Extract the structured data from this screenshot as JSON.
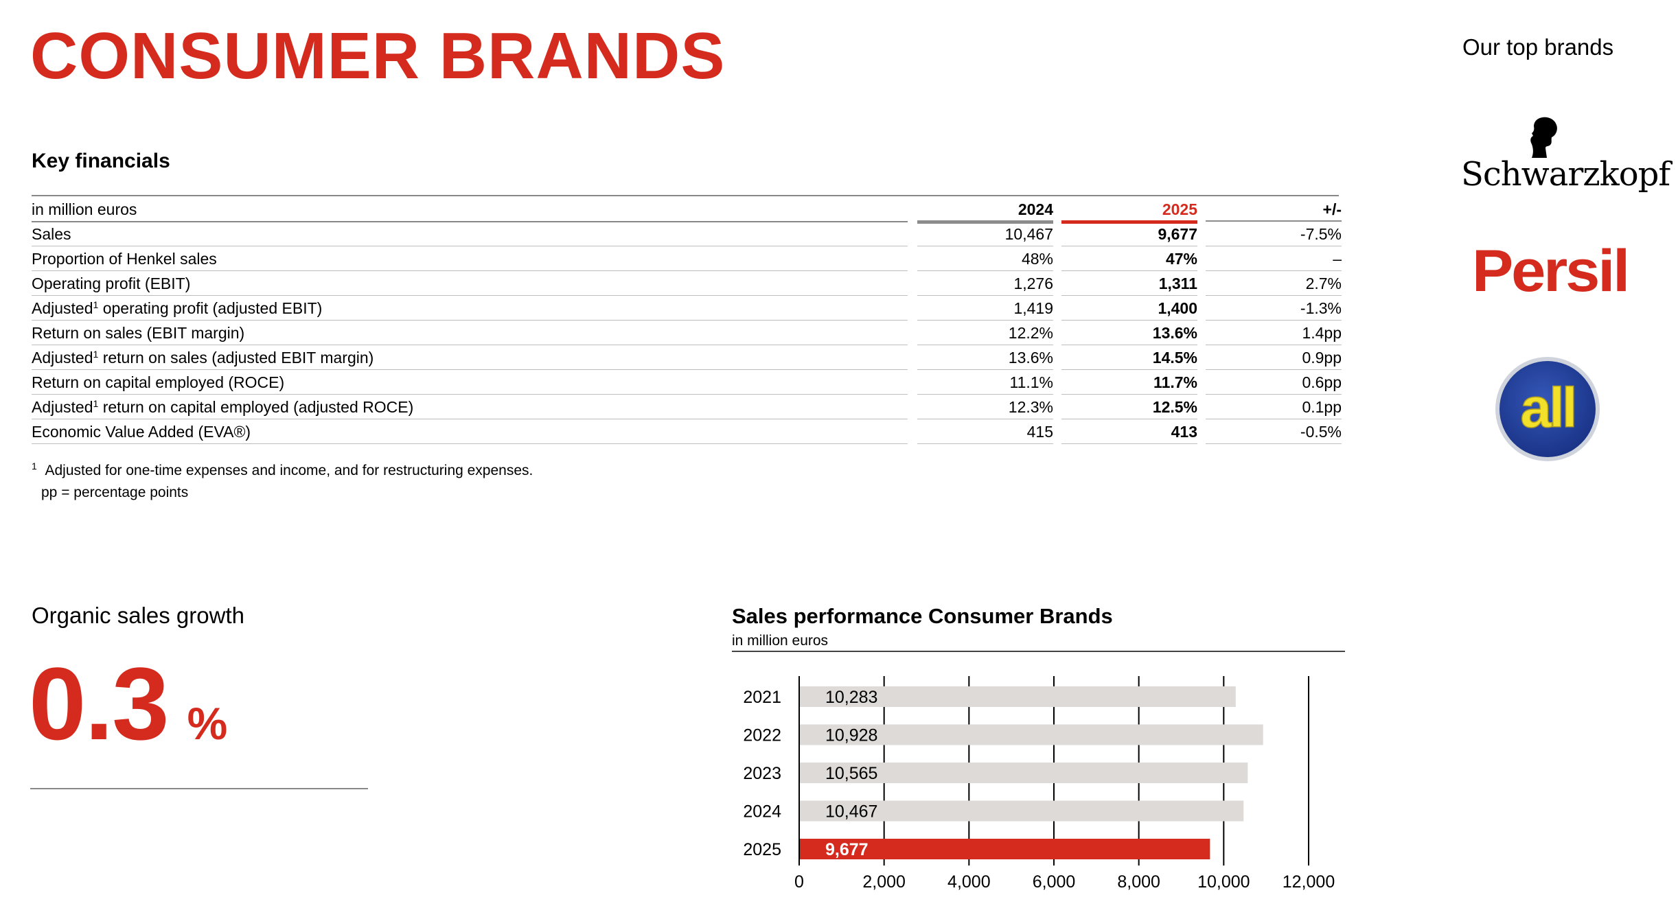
{
  "page": {
    "title": "CONSUMER BRANDS"
  },
  "key_financials": {
    "title": "Key financials",
    "header": {
      "unit": "in million euros",
      "col_2024": "2024",
      "col_2025": "2025",
      "col_diff": "+/-"
    },
    "rows": [
      {
        "label": "Sales",
        "sup": "",
        "label_rest": "",
        "v2024": "10,467",
        "v2025": "9,677",
        "diff": "-7.5%"
      },
      {
        "label": "Proportion of Henkel sales",
        "sup": "",
        "label_rest": "",
        "v2024": "48%",
        "v2025": "47%",
        "diff": "–"
      },
      {
        "label": "Operating profit (EBIT)",
        "sup": "",
        "label_rest": "",
        "v2024": "1,276",
        "v2025": "1,311",
        "diff": "2.7%"
      },
      {
        "label": "Adjusted",
        "sup": "1",
        "label_rest": " operating profit (adjusted EBIT)",
        "v2024": "1,419",
        "v2025": "1,400",
        "diff": "-1.3%"
      },
      {
        "label": "Return on sales (EBIT margin)",
        "sup": "",
        "label_rest": "",
        "v2024": "12.2%",
        "v2025": "13.6%",
        "diff": "1.4pp"
      },
      {
        "label": "Adjusted",
        "sup": "1",
        "label_rest": " return on sales (adjusted EBIT margin)",
        "v2024": "13.6%",
        "v2025": "14.5%",
        "diff": "0.9pp"
      },
      {
        "label": "Return on capital employed (ROCE)",
        "sup": "",
        "label_rest": "",
        "v2024": "11.1%",
        "v2025": "11.7%",
        "diff": "0.6pp"
      },
      {
        "label": "Adjusted",
        "sup": "1",
        "label_rest": " return on capital employed (adjusted ROCE)",
        "v2024": "12.3%",
        "v2025": "12.5%",
        "diff": "0.1pp"
      },
      {
        "label": "Economic Value Added (EVA®)",
        "sup": "",
        "label_rest": "",
        "v2024": "415",
        "v2025": "413",
        "diff": "-0.5%"
      }
    ],
    "footnote_mark": "1",
    "footnote_1": "Adjusted for one-time expenses and income, and for restructuring expenses.",
    "footnote_2": "pp = percentage points"
  },
  "organic_growth": {
    "title": "Organic sales growth",
    "value": "0.3",
    "unit": "%"
  },
  "sales_chart": {
    "title": "Sales performance Consumer Brands",
    "subtitle": "in million euros"
  },
  "chart_data": {
    "type": "bar",
    "orientation": "horizontal",
    "title": "Sales performance Consumer Brands",
    "subtitle": "in million euros",
    "categories": [
      "2021",
      "2022",
      "2023",
      "2024",
      "2025"
    ],
    "values": [
      10283,
      10928,
      10565,
      10467,
      9677
    ],
    "value_labels": [
      "10,283",
      "10,928",
      "10,565",
      "10,467",
      "9,677"
    ],
    "xlim": [
      0,
      12000
    ],
    "xticks": [
      0,
      2000,
      4000,
      6000,
      8000,
      10000,
      12000
    ],
    "xtick_labels": [
      "0",
      "2,000",
      "4,000",
      "6,000",
      "8,000",
      "10,000",
      "12,000"
    ],
    "grid": true,
    "colors": {
      "default": "#dedad7",
      "highlight": "#d52b1e",
      "highlight_category": "2025"
    }
  },
  "brands": {
    "title": "Our top brands",
    "items": [
      {
        "name": "Schwarzkopf",
        "icon": "schwarzkopf-silhouette-icon"
      },
      {
        "name": "Persil",
        "icon": "persil-logo"
      },
      {
        "name": "all",
        "icon": "all-logo"
      }
    ]
  },
  "colors": {
    "accent": "#d52b1e",
    "rule_grey": "#8c8c8c",
    "bar_grey": "#dedad7",
    "all_blue": "#1f3f9a",
    "all_yellow": "#f3e02b"
  }
}
